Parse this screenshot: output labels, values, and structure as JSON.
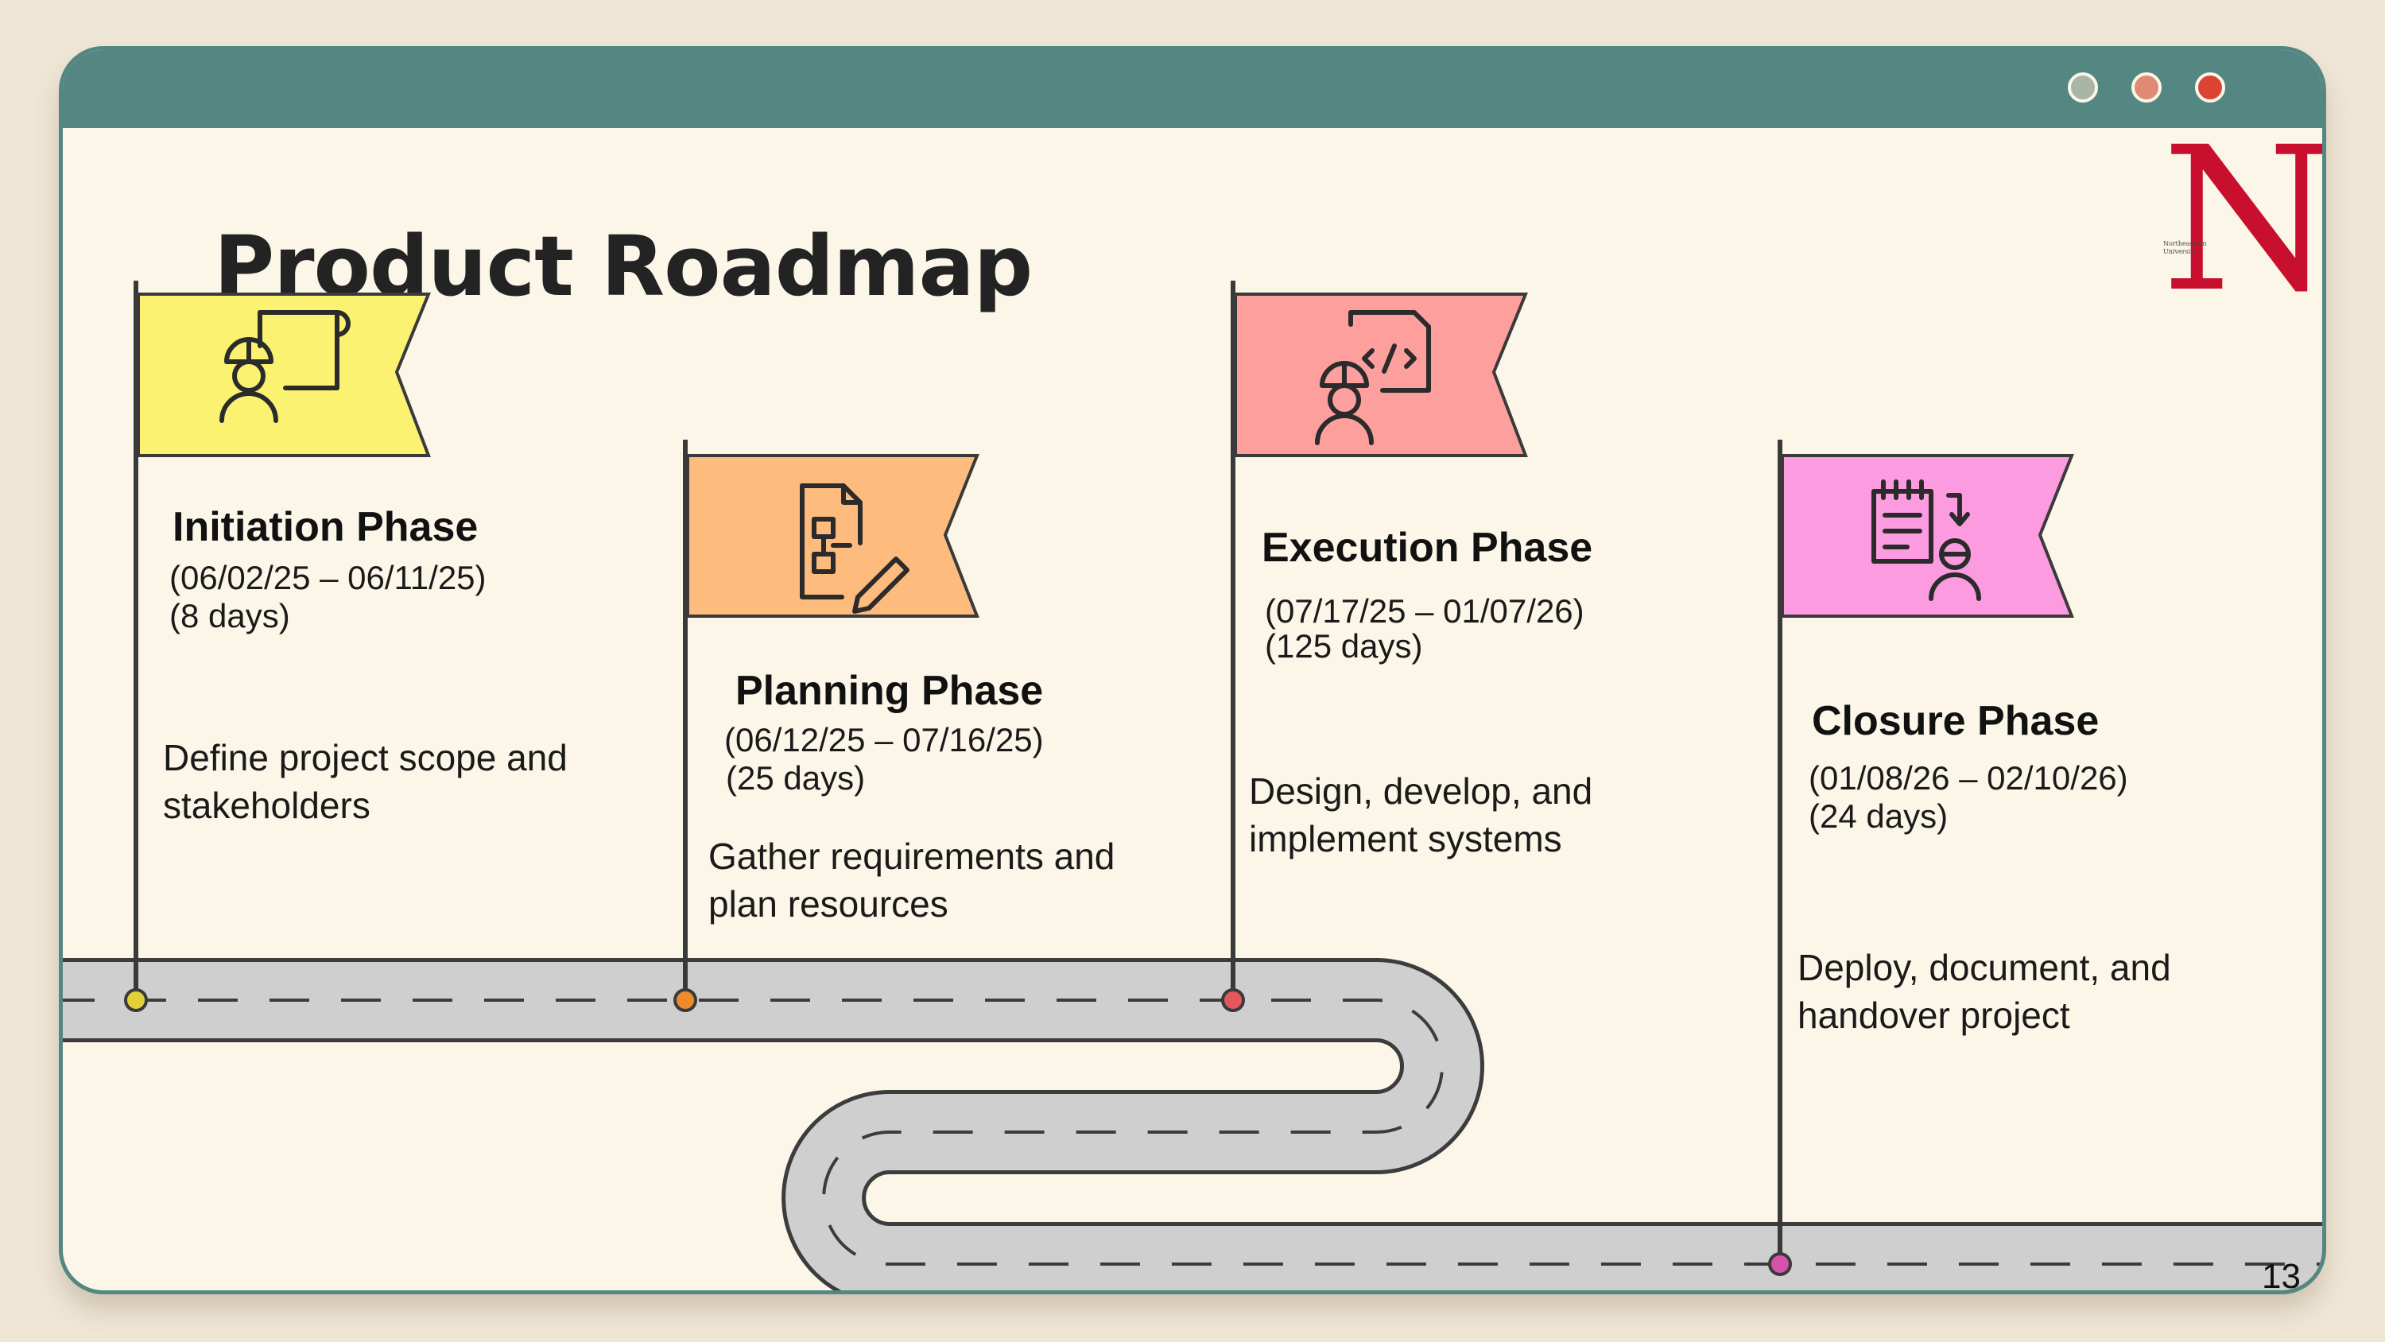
{
  "slide": {
    "title": "Product Roadmap",
    "page_number": "13"
  },
  "logo": {
    "letter": "N",
    "caption_line1": "Northeastern",
    "caption_line2": "University"
  },
  "colors": {
    "frame": "#548782",
    "background": "#fbf6e8",
    "road": "#cfcfcf",
    "logo_red": "#c8102e"
  },
  "phases": [
    {
      "name": "Initiation Phase",
      "dates": "(06/02/25 – 06/11/25)",
      "days": "(8 days)",
      "desc_line1": "Define project scope and",
      "desc_line2": "stakeholders",
      "flag_color": "#fbf272",
      "pin_color": "#e3cf38",
      "icon": "engineer-blueprint-icon"
    },
    {
      "name": "Planning Phase",
      "dates": "(06/12/25 – 07/16/25)",
      "days": "(25 days)",
      "desc_line1": "Gather requirements and",
      "desc_line2": "plan resources",
      "flag_color": "#fdbb7e",
      "pin_color": "#ef8b2a",
      "icon": "flowchart-pencil-icon"
    },
    {
      "name": "Execution Phase",
      "dates": "(07/17/25 – 01/07/26)",
      "days": "(125 days)",
      "desc_line1": "Design, develop, and",
      "desc_line2": "implement systems",
      "flag_color": "#fd9f9d",
      "pin_color": "#e4575a",
      "icon": "developer-code-icon"
    },
    {
      "name": "Closure Phase",
      "dates": "(01/08/26 – 02/10/26)",
      "days": "(24 days)",
      "desc_line1": "Deploy, document, and",
      "desc_line2": "handover project",
      "flag_color": "#fd9be0",
      "pin_color": "#d651a9",
      "icon": "checklist-handover-icon"
    }
  ]
}
